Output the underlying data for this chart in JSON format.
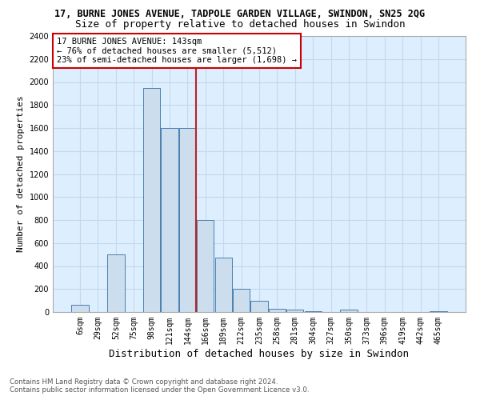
{
  "title": "17, BURNE JONES AVENUE, TADPOLE GARDEN VILLAGE, SWINDON, SN25 2QG",
  "subtitle": "Size of property relative to detached houses in Swindon",
  "xlabel": "Distribution of detached houses by size in Swindon",
  "ylabel": "Number of detached properties",
  "bin_labels": [
    "6sqm",
    "29sqm",
    "52sqm",
    "75sqm",
    "98sqm",
    "121sqm",
    "144sqm",
    "166sqm",
    "189sqm",
    "212sqm",
    "235sqm",
    "258sqm",
    "281sqm",
    "304sqm",
    "327sqm",
    "350sqm",
    "373sqm",
    "396sqm",
    "419sqm",
    "442sqm",
    "465sqm"
  ],
  "bar_heights": [
    60,
    0,
    500,
    0,
    1950,
    1600,
    1600,
    800,
    470,
    200,
    100,
    30,
    20,
    5,
    0,
    20,
    0,
    0,
    0,
    0,
    5
  ],
  "bar_color": "#ccdded",
  "bar_edge_color": "#4a7faf",
  "red_line_after_bin": "144sqm",
  "red_line_color": "#bb2222",
  "annotation_text_line1": "17 BURNE JONES AVENUE: 143sqm",
  "annotation_text_line2": "← 76% of detached houses are smaller (5,512)",
  "annotation_text_line3": "23% of semi-detached houses are larger (1,698) →",
  "annotation_box_edgecolor": "#cc0000",
  "ylim": [
    0,
    2400
  ],
  "yticks": [
    0,
    200,
    400,
    600,
    800,
    1000,
    1200,
    1400,
    1600,
    1800,
    2000,
    2200,
    2400
  ],
  "grid_color": "#c5d8ea",
  "background_color": "#ddeeff",
  "footer_line1": "Contains HM Land Registry data © Crown copyright and database right 2024.",
  "footer_line2": "Contains public sector information licensed under the Open Government Licence v3.0.",
  "title_fontsize": 8.5,
  "subtitle_fontsize": 9,
  "xlabel_fontsize": 9,
  "ylabel_fontsize": 8,
  "tick_fontsize": 7,
  "annotation_fontsize": 7.5,
  "footer_fontsize": 6.2
}
